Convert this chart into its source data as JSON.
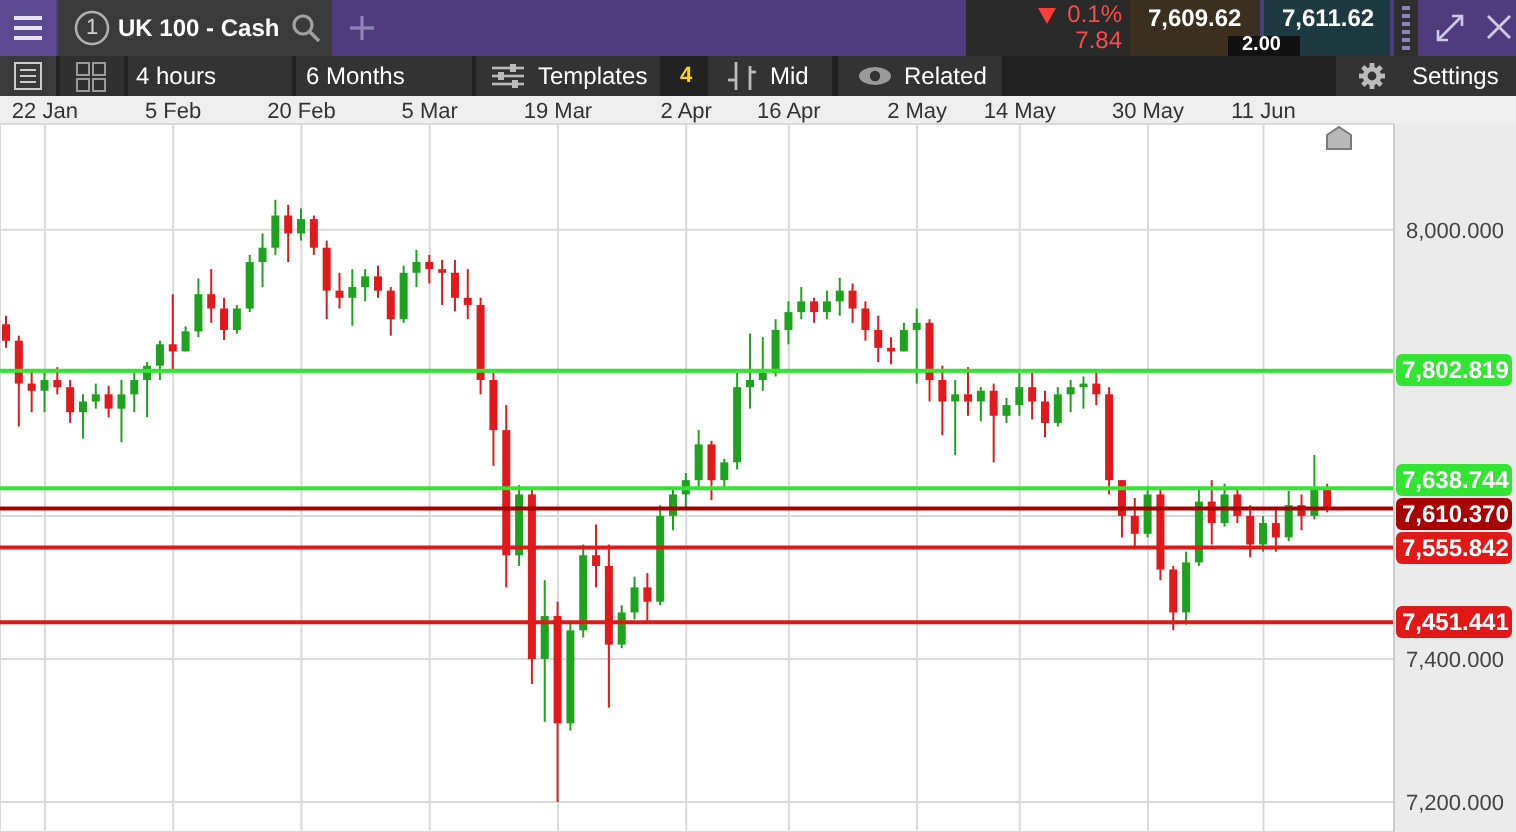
{
  "chart_data": {
    "type": "candlestick",
    "title": "UK 100 - Cash",
    "annotations": [
      "4 hours",
      "6 Months",
      "Templates",
      "4",
      "Mid",
      "Related",
      "Settings",
      "0.1%",
      "7.84",
      "7,609.62",
      "7,611.62",
      "2.00",
      "1"
    ],
    "categories": [
      null,
      null,
      null,
      "22 Jan",
      null,
      null,
      null,
      null,
      null,
      null,
      null,
      null,
      null,
      "5 Feb",
      null,
      null,
      null,
      null,
      null,
      null,
      null,
      null,
      null,
      "20 Feb",
      null,
      null,
      null,
      null,
      null,
      null,
      null,
      null,
      null,
      "5 Mar",
      null,
      null,
      null,
      null,
      null,
      null,
      null,
      null,
      null,
      "19 Mar",
      null,
      null,
      null,
      null,
      null,
      null,
      null,
      null,
      null,
      "2 Apr",
      null,
      null,
      null,
      null,
      null,
      null,
      null,
      "16 Apr",
      null,
      null,
      null,
      null,
      null,
      null,
      null,
      null,
      null,
      "2 May",
      null,
      null,
      null,
      null,
      null,
      null,
      null,
      "14 May",
      null,
      null,
      null,
      null,
      null,
      null,
      null,
      null,
      null,
      "30 May",
      null,
      null,
      null,
      null,
      null,
      null,
      null,
      null,
      "11 Jun",
      null,
      null,
      null,
      null,
      null
    ],
    "ohlc": [
      [
        7868,
        7880,
        7835,
        7845
      ],
      [
        7845,
        7852,
        7725,
        7785
      ],
      [
        7785,
        7805,
        7745,
        7775
      ],
      [
        7775,
        7800,
        7745,
        7790
      ],
      [
        7790,
        7808,
        7770,
        7780
      ],
      [
        7780,
        7790,
        7730,
        7745
      ],
      [
        7745,
        7770,
        7708,
        7760
      ],
      [
        7760,
        7785,
        7750,
        7770
      ],
      [
        7770,
        7782,
        7738,
        7750
      ],
      [
        7750,
        7790,
        7703,
        7770
      ],
      [
        7770,
        7800,
        7745,
        7790
      ],
      [
        7790,
        7815,
        7738,
        7810
      ],
      [
        7810,
        7845,
        7790,
        7840
      ],
      [
        7840,
        7910,
        7805,
        7830
      ],
      [
        7830,
        7865,
        7830,
        7858
      ],
      [
        7858,
        7932,
        7850,
        7910
      ],
      [
        7910,
        7945,
        7870,
        7890
      ],
      [
        7890,
        7905,
        7846,
        7860
      ],
      [
        7860,
        7895,
        7855,
        7890
      ],
      [
        7890,
        7965,
        7885,
        7955
      ],
      [
        7955,
        7995,
        7920,
        7975
      ],
      [
        7975,
        8042,
        7965,
        8020
      ],
      [
        8020,
        8035,
        7955,
        7995
      ],
      [
        7995,
        8030,
        7985,
        8015
      ],
      [
        8015,
        8020,
        7965,
        7975
      ],
      [
        7975,
        7985,
        7875,
        7915
      ],
      [
        7915,
        7940,
        7890,
        7905
      ],
      [
        7905,
        7945,
        7866,
        7920
      ],
      [
        7920,
        7945,
        7900,
        7935
      ],
      [
        7935,
        7950,
        7905,
        7915
      ],
      [
        7915,
        7920,
        7852,
        7875
      ],
      [
        7875,
        7950,
        7870,
        7940
      ],
      [
        7940,
        7972,
        7920,
        7955
      ],
      [
        7955,
        7965,
        7925,
        7945
      ],
      [
        7945,
        7958,
        7895,
        7940
      ],
      [
        7940,
        7958,
        7886,
        7905
      ],
      [
        7905,
        7945,
        7875,
        7895
      ],
      [
        7895,
        7905,
        7770,
        7790
      ],
      [
        7790,
        7800,
        7670,
        7720
      ],
      [
        7720,
        7755,
        7500,
        7545
      ],
      [
        7545,
        7643,
        7530,
        7630
      ],
      [
        7630,
        7640,
        7365,
        7400
      ],
      [
        7400,
        7510,
        7312,
        7460
      ],
      [
        7460,
        7480,
        7200,
        7310
      ],
      [
        7310,
        7450,
        7300,
        7440
      ],
      [
        7440,
        7560,
        7430,
        7545
      ],
      [
        7545,
        7588,
        7500,
        7530
      ],
      [
        7530,
        7560,
        7332,
        7420
      ],
      [
        7420,
        7475,
        7415,
        7465
      ],
      [
        7465,
        7515,
        7455,
        7500
      ],
      [
        7500,
        7520,
        7450,
        7480
      ],
      [
        7480,
        7615,
        7475,
        7600
      ],
      [
        7600,
        7640,
        7580,
        7630
      ],
      [
        7630,
        7660,
        7610,
        7650
      ],
      [
        7650,
        7720,
        7640,
        7700
      ],
      [
        7700,
        7705,
        7622,
        7650
      ],
      [
        7650,
        7680,
        7640,
        7675
      ],
      [
        7675,
        7800,
        7665,
        7780
      ],
      [
        7780,
        7855,
        7750,
        7790
      ],
      [
        7790,
        7850,
        7775,
        7800
      ],
      [
        7800,
        7875,
        7795,
        7860
      ],
      [
        7860,
        7900,
        7840,
        7885
      ],
      [
        7885,
        7920,
        7875,
        7900
      ],
      [
        7900,
        7905,
        7870,
        7885
      ],
      [
        7885,
        7915,
        7875,
        7900
      ],
      [
        7900,
        7933,
        7880,
        7915
      ],
      [
        7915,
        7925,
        7870,
        7890
      ],
      [
        7890,
        7900,
        7845,
        7860
      ],
      [
        7860,
        7880,
        7815,
        7835
      ],
      [
        7835,
        7850,
        7812,
        7830
      ],
      [
        7830,
        7870,
        7830,
        7860
      ],
      [
        7860,
        7890,
        7785,
        7870
      ],
      [
        7870,
        7875,
        7760,
        7790
      ],
      [
        7790,
        7810,
        7713,
        7760
      ],
      [
        7760,
        7790,
        7685,
        7770
      ],
      [
        7770,
        7808,
        7740,
        7760
      ],
      [
        7760,
        7780,
        7732,
        7775
      ],
      [
        7775,
        7785,
        7675,
        7740
      ],
      [
        7740,
        7765,
        7730,
        7755
      ],
      [
        7755,
        7800,
        7740,
        7780
      ],
      [
        7780,
        7800,
        7735,
        7760
      ],
      [
        7760,
        7775,
        7710,
        7730
      ],
      [
        7730,
        7780,
        7725,
        7770
      ],
      [
        7770,
        7790,
        7745,
        7780
      ],
      [
        7780,
        7795,
        7750,
        7785
      ],
      [
        7785,
        7800,
        7755,
        7770
      ],
      [
        7770,
        7780,
        7630,
        7650
      ],
      [
        7650,
        7650,
        7570,
        7600
      ],
      [
        7600,
        7625,
        7555,
        7575
      ],
      [
        7575,
        7642,
        7570,
        7630
      ],
      [
        7630,
        7640,
        7510,
        7525
      ],
      [
        7525,
        7530,
        7440,
        7465
      ],
      [
        7465,
        7550,
        7448,
        7535
      ],
      [
        7535,
        7640,
        7530,
        7620
      ],
      [
        7620,
        7650,
        7560,
        7590
      ],
      [
        7590,
        7645,
        7585,
        7630
      ],
      [
        7630,
        7640,
        7590,
        7600
      ],
      [
        7600,
        7615,
        7542,
        7560
      ],
      [
        7560,
        7600,
        7550,
        7590
      ],
      [
        7590,
        7610,
        7550,
        7570
      ],
      [
        7570,
        7635,
        7565,
        7615
      ],
      [
        7615,
        7630,
        7580,
        7600
      ],
      [
        7600,
        7685,
        7595,
        7640
      ],
      [
        7640,
        7645,
        7605,
        7610
      ]
    ],
    "colors": [
      "#e3191b",
      "#e3191b",
      "#e3191b",
      "#1fa31f",
      "#e3191b",
      "#e3191b",
      "#1fa31f",
      "#1fa31f",
      "#e3191b",
      "#1fa31f",
      "#1fa31f",
      "#1fa31f",
      "#1fa31f",
      "#e3191b",
      "#1fa31f",
      "#1fa31f",
      "#e3191b",
      "#e3191b",
      "#1fa31f",
      "#1fa31f",
      "#1fa31f",
      "#1fa31f",
      "#e3191b",
      "#1fa31f",
      "#e3191b",
      "#e3191b",
      "#e3191b",
      "#1fa31f",
      "#1fa31f",
      "#e3191b",
      "#e3191b",
      "#1fa31f",
      "#1fa31f",
      "#e3191b",
      "#e3191b",
      "#e3191b",
      "#e3191b",
      "#e3191b",
      "#e3191b",
      "#e3191b",
      "#1fa31f",
      "#e3191b",
      "#1fa31f",
      "#e3191b",
      "#1fa31f",
      "#1fa31f",
      "#e3191b",
      "#e3191b",
      "#1fa31f",
      "#1fa31f",
      "#e3191b",
      "#1fa31f",
      "#1fa31f",
      "#1fa31f",
      "#1fa31f",
      "#e3191b",
      "#1fa31f",
      "#1fa31f",
      "#1fa31f",
      "#1fa31f",
      "#1fa31f",
      "#1fa31f",
      "#1fa31f",
      "#e3191b",
      "#1fa31f",
      "#1fa31f",
      "#e3191b",
      "#e3191b",
      "#e3191b",
      "#e3191b",
      "#1fa31f",
      "#1fa31f",
      "#e3191b",
      "#e3191b",
      "#1fa31f",
      "#e3191b",
      "#1fa31f",
      "#e3191b",
      "#1fa31f",
      "#1fa31f",
      "#e3191b",
      "#e3191b",
      "#1fa31f",
      "#1fa31f",
      "#1fa31f",
      "#e3191b",
      "#e3191b",
      "#e3191b",
      "#e3191b",
      "#1fa31f",
      "#e3191b",
      "#e3191b",
      "#1fa31f",
      "#1fa31f",
      "#e3191b",
      "#1fa31f",
      "#e3191b",
      "#e3191b",
      "#1fa31f",
      "#e3191b",
      "#1fa31f",
      "#e3191b",
      "#1fa31f",
      "#e3191b"
    ],
    "ylim": [
      7158,
      8148
    ],
    "yticks": [
      {
        "value": 7200,
        "label": "7,200.000"
      },
      {
        "value": 7400,
        "label": "7,400.000"
      },
      {
        "value": 7600,
        "label": null
      },
      {
        "value": 7800,
        "label": null
      },
      {
        "value": 8000,
        "label": "8,000.000"
      }
    ],
    "grid": true,
    "ref_lines": [
      {
        "axis": "y",
        "value": 7802.819,
        "label": "7,802.819",
        "color": "#33e433"
      },
      {
        "axis": "y",
        "value": 7638.744,
        "label": "7,638.744",
        "color": "#33e433"
      },
      {
        "axis": "y",
        "value": 7610.37,
        "label": "7,610.370",
        "color": "#a80000"
      },
      {
        "axis": "y",
        "value": 7555.842,
        "label": "7,555.842",
        "color": "#e01818"
      },
      {
        "axis": "y",
        "value": 7451.441,
        "label": "7,451.441",
        "color": "#e01818"
      }
    ]
  }
}
